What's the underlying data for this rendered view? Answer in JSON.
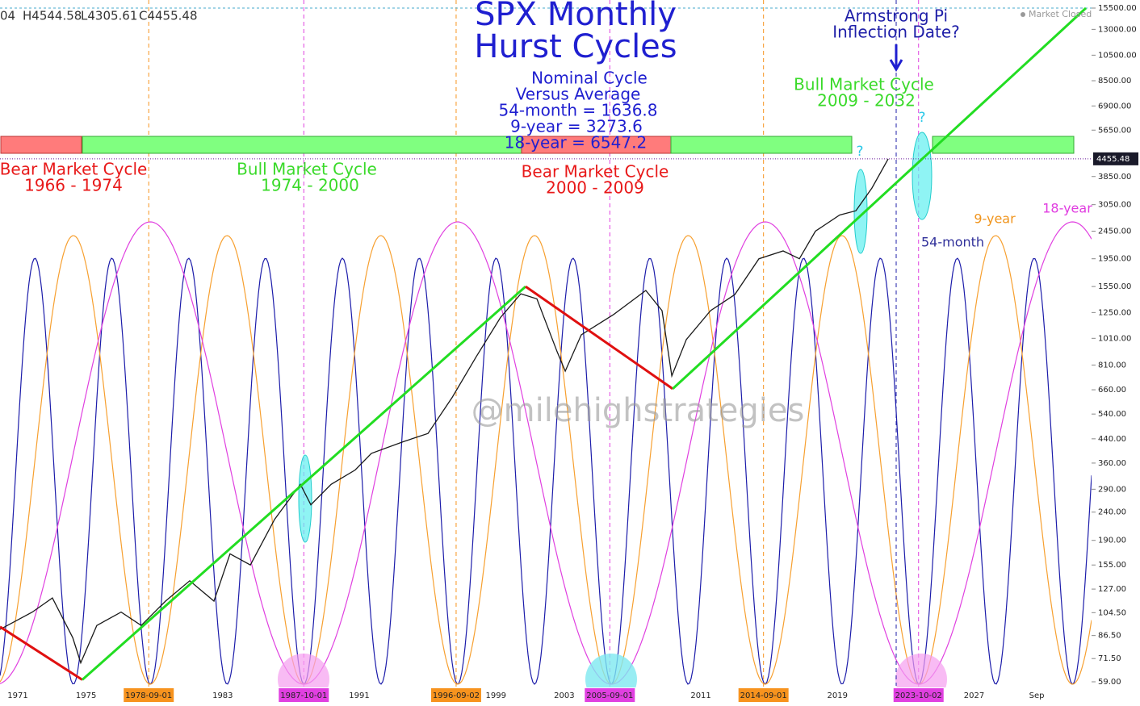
{
  "chart_data": {
    "type": "line",
    "title": [
      "SPX Monthly",
      "Hurst Cycles"
    ],
    "ohlc": [
      "04",
      "H4544.58",
      "L4305.61",
      "C4455.48"
    ],
    "status": "Market Closed",
    "watermark": "@milehighstrategies",
    "nominal": [
      "Nominal Cycle",
      "Versus Average",
      "54-month = 1636.8",
      "9-year = 3273.6",
      "18-year = 6547.2"
    ],
    "armstrong": [
      "Armstrong Pi",
      "Inflection Date?"
    ],
    "cycles": [
      [
        "Bear Market Cycle",
        "1966 - 1974"
      ],
      [
        "Bull Market Cycle",
        "1974 - 2000"
      ],
      [
        "Bear Market Cycle",
        "2000 - 2009"
      ],
      [
        "Bull Market Cycle",
        "2009 - 2032"
      ]
    ],
    "questions": [
      "?",
      "?"
    ],
    "wave_labels": [
      "9-year",
      "18-year",
      "54-month"
    ],
    "log_scale": true,
    "color": "#1a1a1a",
    "x": [
      1969.96,
      1971.85,
      1973.03,
      1974.22,
      1974.69,
      1975.63,
      1977.05,
      1978.23,
      1979.65,
      1981.07,
      1982.49,
      1983.43,
      1984.62,
      1986.04,
      1987.55,
      1988.16,
      1989.35,
      1990.76,
      1991.71,
      1993.6,
      1995.02,
      1996.44,
      1997.86,
      1999.27,
      2000.46,
      2001.4,
      2002.58,
      2003.06,
      2004.0,
      2005.89,
      2007.78,
      2008.73,
      2009.3,
      2010.15,
      2011.57,
      2012.99,
      2014.4,
      2015.82,
      2016.77,
      2017.71,
      2019.13,
      2020.08,
      2021.02,
      2021.97
    ],
    "values": [
      91,
      105,
      118,
      85,
      69,
      94,
      105,
      94,
      115,
      136,
      115,
      170,
      155,
      226,
      302,
      255,
      302,
      340,
      390,
      430,
      460,
      620,
      870,
      1200,
      1460,
      1400,
      905,
      770,
      1040,
      1230,
      1500,
      1270,
      740,
      1000,
      1270,
      1450,
      1950,
      2080,
      1950,
      2450,
      2800,
      2900,
      3500,
      4455
    ],
    "trendlines": [
      {
        "color": "#e01010",
        "x": [
          1969.96,
          1974.78
        ],
        "values": [
          93,
          60
        ]
      },
      {
        "color": "#22dd22",
        "x": [
          1974.78,
          2000.74
        ],
        "values": [
          60,
          1550
        ]
      },
      {
        "color": "#e01010",
        "x": [
          2000.74,
          2009.35
        ],
        "values": [
          1550,
          665
        ]
      },
      {
        "color": "#22dd22",
        "x": [
          2009.35,
          2033.55
        ],
        "values": [
          665,
          15500
        ]
      }
    ],
    "last": 4455.48,
    "xlim": [
      1969.96,
      2033.88
    ],
    "ylim": [
      59,
      15500
    ],
    "xticks": [
      1971,
      1975,
      {
        "value": 1978.67,
        "label": "1978-09-01",
        "color": "#f7931e"
      },
      1983,
      {
        "value": 1987.75,
        "label": "1987-10-01",
        "color": "#e040e0"
      },
      1991,
      {
        "value": 1996.67,
        "label": "1996-09-02",
        "color": "#f7931e"
      },
      1999,
      2003,
      {
        "value": 2005.67,
        "label": "2005-09-01",
        "color": "#e040e0"
      },
      2011,
      {
        "value": 2014.67,
        "label": "2014-09-01",
        "color": "#f7931e"
      },
      2019,
      {
        "value": 2023.75,
        "label": "2023-10-02",
        "color": "#e040e0"
      },
      2027,
      {
        "value": 2030.67,
        "label": "Sep"
      }
    ],
    "yticks": [
      {
        "value": 59,
        "label": "59.00"
      },
      {
        "value": 71.5,
        "label": "71.50"
      },
      {
        "value": 86.5,
        "label": "86.50"
      },
      {
        "value": 104.5,
        "label": "104.50"
      },
      {
        "value": 127,
        "label": "127.00"
      },
      {
        "value": 155,
        "label": "155.00"
      },
      {
        "value": 190,
        "label": "190.00"
      },
      {
        "value": 240,
        "label": "240.00"
      },
      {
        "value": 290,
        "label": "290.00"
      },
      {
        "value": 360,
        "label": "360.00"
      },
      {
        "value": 440,
        "label": "440.00"
      },
      {
        "value": 540,
        "label": "540.00"
      },
      {
        "value": 660,
        "label": "660.00"
      },
      {
        "value": 810,
        "label": "810.00"
      },
      {
        "value": 1010,
        "label": "1010.00"
      },
      {
        "value": 1250,
        "label": "1250.00"
      },
      {
        "value": 1550,
        "label": "1550.00"
      },
      {
        "value": 1950,
        "label": "1950.00"
      },
      {
        "value": 2450,
        "label": "2450.00"
      },
      {
        "value": 3050,
        "label": "3050.00"
      },
      {
        "value": 3850,
        "label": "3850.00"
      },
      {
        "value": 5650,
        "label": "5650.00"
      },
      {
        "value": 6900,
        "label": "6900.00"
      },
      {
        "value": 8500,
        "label": "8500.00"
      },
      {
        "value": 10500,
        "label": "10500.00"
      },
      {
        "value": 13000,
        "label": "13000.00"
      },
      {
        "value": 15500,
        "label": "15500.00"
      }
    ]
  }
}
